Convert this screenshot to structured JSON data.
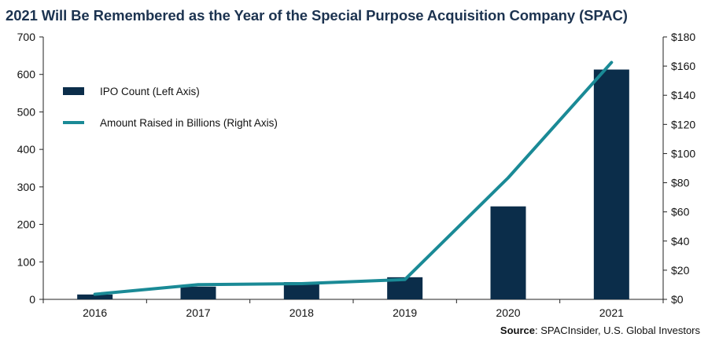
{
  "chart_data": {
    "type": "bar+line",
    "title": "2021 Will Be Remembered as the Year of the Special Purpose Acquisition Company (SPAC)",
    "categories": [
      "2016",
      "2017",
      "2018",
      "2019",
      "2020",
      "2021"
    ],
    "series": [
      {
        "name": "IPO Count (Left Axis)",
        "type": "bar",
        "axis": "left",
        "values": [
          13,
          34,
          46,
          59,
          248,
          613
        ],
        "color": "#0b2d4a"
      },
      {
        "name": "Amount Raised in Billions (Right Axis)",
        "type": "line",
        "axis": "right",
        "values": [
          3.5,
          10.1,
          10.8,
          13.6,
          83.4,
          162.5
        ],
        "color": "#1a8a96"
      }
    ],
    "left_axis": {
      "ylim": [
        0,
        700
      ],
      "ticks": [
        "0",
        "100",
        "200",
        "300",
        "400",
        "500",
        "600",
        "700"
      ]
    },
    "right_axis": {
      "ylim": [
        0,
        180
      ],
      "ticks": [
        "$0",
        "$20",
        "$40",
        "$60",
        "$80",
        "$100",
        "$120",
        "$140",
        "$160",
        "$180"
      ]
    },
    "legend_position": "top-left",
    "grid": false
  },
  "source": {
    "label": "Source",
    "text": ": SPACInsider, U.S. Global Investors"
  }
}
